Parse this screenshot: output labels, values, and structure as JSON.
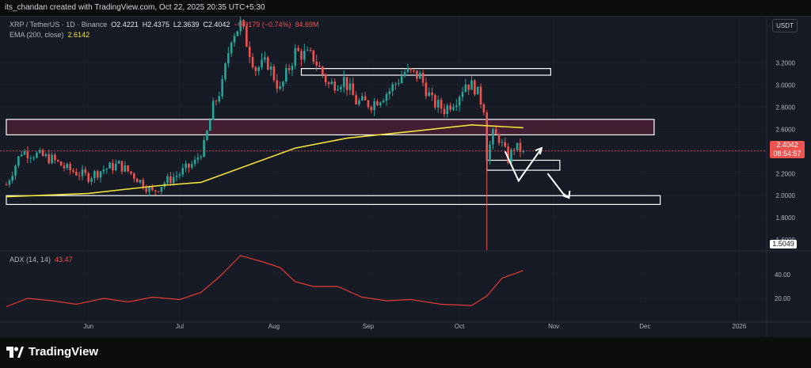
{
  "header": {
    "credit": "its_chandan created with TradingView.com, Oct 22, 2025 20:35 UTC+5:30"
  },
  "legend": {
    "symbol": "XRP / TetherUS · 1D · Binance",
    "open": "O2.4221",
    "high": "H2.4375",
    "low": "L2.3639",
    "close": "C2.4042",
    "change": "−0.0179 (−0.74%)",
    "volume": "84.69M",
    "ema_label": "EMA (200, close)",
    "ema_value": "2.6142",
    "adx_label": "ADX (14, 14)",
    "adx_value": "43.47"
  },
  "price_axis": {
    "currency": "USDT",
    "current_price": "2.4042",
    "countdown": "08:54:57",
    "low_marker": "1.5049",
    "partial_label": "1.6000"
  },
  "footer": {
    "brand": "TradingView"
  },
  "colors": {
    "up": "#26a69a",
    "down": "#ef5350",
    "ema": "#f2e03c",
    "adx": "#e53935",
    "zone_fill": "#4a1f34",
    "zone_border": "#ffffff",
    "arrow": "#ffffff"
  },
  "chart_data": [
    {
      "type": "candlestick",
      "title": "XRP / TetherUS · 1D · Binance",
      "x_ticks": [
        "Jun",
        "Jul",
        "Aug",
        "Sep",
        "Oct",
        "Nov",
        "Dec",
        "2026"
      ],
      "y_ticks": [
        "1.8000",
        "2.0000",
        "2.2000",
        "2.4000",
        "2.6000",
        "2.8000",
        "3.0000",
        "3.2000"
      ],
      "ylim": [
        1.5,
        3.62
      ],
      "grid": true,
      "start_date": "2025-05-05",
      "daily_close_anchors": [
        [
          "2025-05-05",
          2.1
        ],
        [
          "2025-05-10",
          2.4
        ],
        [
          "2025-05-15",
          2.37
        ],
        [
          "2025-05-20",
          2.33
        ],
        [
          "2025-05-25",
          2.24
        ],
        [
          "2025-06-01",
          2.17
        ],
        [
          "2025-06-06",
          2.24
        ],
        [
          "2025-06-11",
          2.28
        ],
        [
          "2025-06-16",
          2.18
        ],
        [
          "2025-06-22",
          2.03
        ],
        [
          "2025-06-26",
          2.12
        ],
        [
          "2025-07-01",
          2.2
        ],
        [
          "2025-07-06",
          2.3
        ],
        [
          "2025-07-09",
          2.45
        ],
        [
          "2025-07-12",
          2.8
        ],
        [
          "2025-07-15",
          3.0
        ],
        [
          "2025-07-18",
          3.45
        ],
        [
          "2025-07-21",
          3.55
        ],
        [
          "2025-07-26",
          3.15
        ],
        [
          "2025-07-30",
          3.2
        ],
        [
          "2025-08-03",
          2.95
        ],
        [
          "2025-08-08",
          3.3
        ],
        [
          "2025-08-14",
          3.25
        ],
        [
          "2025-08-19",
          3.0
        ],
        [
          "2025-08-24",
          3.05
        ],
        [
          "2025-08-28",
          2.85
        ],
        [
          "2025-09-02",
          2.83
        ],
        [
          "2025-09-08",
          2.95
        ],
        [
          "2025-09-13",
          3.12
        ],
        [
          "2025-09-18",
          3.08
        ],
        [
          "2025-09-22",
          2.85
        ],
        [
          "2025-09-26",
          2.78
        ],
        [
          "2025-09-30",
          2.88
        ],
        [
          "2025-10-03",
          3.02
        ],
        [
          "2025-10-06",
          2.98
        ],
        [
          "2025-10-09",
          2.8
        ],
        [
          "2025-10-10",
          2.36
        ],
        [
          "2025-10-12",
          2.55
        ],
        [
          "2025-10-14",
          2.52
        ],
        [
          "2025-10-17",
          2.33
        ],
        [
          "2025-10-19",
          2.44
        ],
        [
          "2025-10-22",
          2.4042
        ]
      ],
      "ema200": [
        [
          "2025-05-05",
          1.99
        ],
        [
          "2025-06-01",
          2.02
        ],
        [
          "2025-06-24",
          2.09
        ],
        [
          "2025-07-08",
          2.12
        ],
        [
          "2025-07-22",
          2.26
        ],
        [
          "2025-08-08",
          2.43
        ],
        [
          "2025-08-25",
          2.52
        ],
        [
          "2025-09-15",
          2.58
        ],
        [
          "2025-10-05",
          2.64
        ],
        [
          "2025-10-22",
          2.6142
        ]
      ],
      "zones": [
        {
          "top": 2.69,
          "bottom": 2.55,
          "from": "2025-05-05",
          "to": "2025-12-04",
          "filled": true
        },
        {
          "top": 3.15,
          "bottom": 3.09,
          "from": "2025-08-10",
          "to": "2025-10-31",
          "filled": false
        },
        {
          "top": 2.32,
          "bottom": 2.23,
          "from": "2025-10-10",
          "to": "2025-11-03",
          "filled": false
        },
        {
          "top": 2.0,
          "bottom": 1.92,
          "from": "2025-05-05",
          "to": "2025-12-06",
          "filled": false
        }
      ],
      "projection_arrows": [
        [
          [
            "2025-10-16",
            2.22
          ],
          [
            "2025-10-28",
            2.24
          ]
        ],
        [
          [
            "2025-10-30",
            2.2
          ],
          [
            "2025-11-04",
            2.02
          ],
          [
            "2025-11-06",
            1.98
          ]
        ]
      ],
      "spike_low": {
        "date": "2025-10-10",
        "value": 1.5049
      }
    },
    {
      "type": "line",
      "title": "ADX (14, 14)",
      "y_ticks": [
        "20.00",
        "40.00"
      ],
      "ylim": [
        0,
        60
      ],
      "series": [
        {
          "name": "ADX (14, 14)",
          "points": [
            [
              "2025-05-05",
              13
            ],
            [
              "2025-05-12",
              20
            ],
            [
              "2025-05-20",
              18
            ],
            [
              "2025-05-28",
              15
            ],
            [
              "2025-06-06",
              20
            ],
            [
              "2025-06-14",
              17
            ],
            [
              "2025-06-22",
              21
            ],
            [
              "2025-07-01",
              19
            ],
            [
              "2025-07-08",
              25
            ],
            [
              "2025-07-14",
              38
            ],
            [
              "2025-07-21",
              56
            ],
            [
              "2025-07-28",
              51
            ],
            [
              "2025-08-03",
              46
            ],
            [
              "2025-08-08",
              34
            ],
            [
              "2025-08-14",
              30
            ],
            [
              "2025-08-22",
              30
            ],
            [
              "2025-08-30",
              21
            ],
            [
              "2025-09-07",
              18
            ],
            [
              "2025-09-15",
              19
            ],
            [
              "2025-09-25",
              15
            ],
            [
              "2025-10-05",
              14
            ],
            [
              "2025-10-10",
              22
            ],
            [
              "2025-10-15",
              37
            ],
            [
              "2025-10-22",
              43.47
            ]
          ]
        }
      ]
    }
  ]
}
